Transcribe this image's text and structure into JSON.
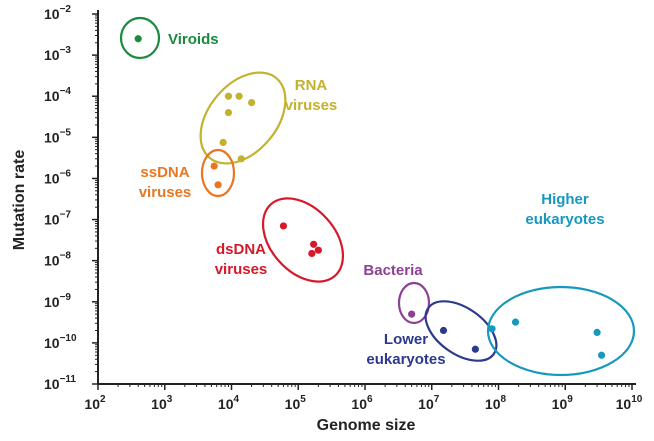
{
  "chart_data": {
    "type": "scatter",
    "title": "",
    "xlabel": "Genome size",
    "ylabel": "Mutation rate",
    "x_scale": "log",
    "y_scale": "log",
    "xlim": [
      100,
      10000000000
    ],
    "ylim": [
      1e-11,
      0.01
    ],
    "grid": false,
    "legend": "none",
    "x_ticks": [
      {
        "value": 100,
        "base": "10",
        "exp": "2"
      },
      {
        "value": 1000,
        "base": "10",
        "exp": "3"
      },
      {
        "value": 10000,
        "base": "10",
        "exp": "4"
      },
      {
        "value": 100000,
        "base": "10",
        "exp": "5"
      },
      {
        "value": 1000000,
        "base": "10",
        "exp": "6"
      },
      {
        "value": 10000000,
        "base": "10",
        "exp": "7"
      },
      {
        "value": 100000000,
        "base": "10",
        "exp": "8"
      },
      {
        "value": 1000000000,
        "base": "10",
        "exp": "9"
      },
      {
        "value": 10000000000,
        "base": "10",
        "exp": "10"
      }
    ],
    "y_ticks": [
      {
        "value": 0.01,
        "base": "10",
        "exp": "−2"
      },
      {
        "value": 0.001,
        "base": "10",
        "exp": "−3"
      },
      {
        "value": 0.0001,
        "base": "10",
        "exp": "−4"
      },
      {
        "value": 1e-05,
        "base": "10",
        "exp": "−5"
      },
      {
        "value": 1e-06,
        "base": "10",
        "exp": "−6"
      },
      {
        "value": 1e-07,
        "base": "10",
        "exp": "−7"
      },
      {
        "value": 1e-08,
        "base": "10",
        "exp": "−8"
      },
      {
        "value": 1e-09,
        "base": "10",
        "exp": "−9"
      },
      {
        "value": 1e-10,
        "base": "10",
        "exp": "−10"
      },
      {
        "value": 1e-11,
        "base": "10",
        "exp": "−11"
      }
    ],
    "groups": [
      {
        "id": "viroids",
        "label_lines": [
          "Viroids"
        ],
        "color": "#1a8a3e",
        "points": [
          {
            "x": 400,
            "y": 0.0025
          }
        ]
      },
      {
        "id": "rna-viruses",
        "label_lines": [
          "RNA",
          "viruses"
        ],
        "color": "#c2b22e",
        "points": [
          {
            "x": 9000,
            "y": 0.0001
          },
          {
            "x": 13000,
            "y": 0.0001
          },
          {
            "x": 20000,
            "y": 7e-05
          },
          {
            "x": 9000,
            "y": 4e-05
          },
          {
            "x": 7500,
            "y": 7.5e-06
          },
          {
            "x": 14000,
            "y": 3e-06
          }
        ]
      },
      {
        "id": "ssdna-viruses",
        "label_lines": [
          "ssDNA",
          "viruses"
        ],
        "color": "#e87722",
        "points": [
          {
            "x": 5500,
            "y": 2e-06
          },
          {
            "x": 6300,
            "y": 7e-07
          }
        ]
      },
      {
        "id": "dsdna-viruses",
        "label_lines": [
          "dsDNA",
          "viruses"
        ],
        "color": "#d7182a",
        "points": [
          {
            "x": 60000,
            "y": 7e-08
          },
          {
            "x": 170000,
            "y": 2.5e-08
          },
          {
            "x": 200000,
            "y": 1.8e-08
          },
          {
            "x": 160000,
            "y": 1.5e-08
          }
        ]
      },
      {
        "id": "bacteria",
        "label_lines": [
          "Bacteria"
        ],
        "color": "#8e3f96",
        "points": [
          {
            "x": 5000000,
            "y": 5e-10
          }
        ]
      },
      {
        "id": "lower-eukaryotes",
        "label_lines": [
          "Lower",
          "eukaryotes"
        ],
        "color": "#2b3a8c",
        "points": [
          {
            "x": 15000000,
            "y": 2e-10
          },
          {
            "x": 45000000,
            "y": 7e-11
          }
        ]
      },
      {
        "id": "higher-eukaryotes",
        "label_lines": [
          "Higher",
          "eukaryotes"
        ],
        "color": "#1798be",
        "points": [
          {
            "x": 80000000,
            "y": 2.2e-10
          },
          {
            "x": 180000000,
            "y": 3.2e-10
          },
          {
            "x": 3000000000,
            "y": 1.8e-10
          },
          {
            "x": 3500000000,
            "y": 5e-11
          }
        ]
      }
    ]
  }
}
